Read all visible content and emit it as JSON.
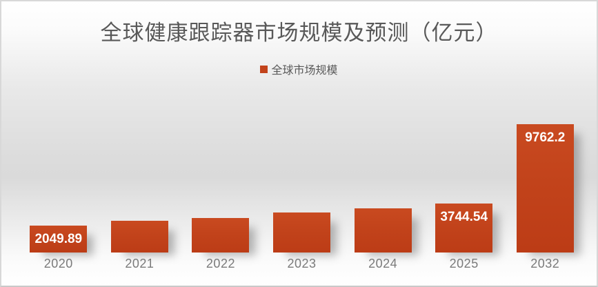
{
  "title": "全球健康跟踪器市场规模及预测（亿元）",
  "legend": {
    "label": "全球市场规模",
    "swatch": "orange-square"
  },
  "colors": {
    "bar": "#c2431b",
    "bar_gradient_top": "#c94a20",
    "bar_gradient_bottom": "#bc3c16",
    "title_text": "#595959",
    "axis_text": "#7a7a7a",
    "data_label_text": "#ffffff",
    "frame_border": "#d8d8d8",
    "background_mid": "#dadada"
  },
  "chart_data": {
    "type": "bar",
    "title": "全球健康跟踪器市场规模及预测（亿元）",
    "xlabel": "",
    "ylabel": "",
    "unit": "亿元",
    "categories": [
      "2020",
      "2021",
      "2022",
      "2023",
      "2024",
      "2025",
      "2032"
    ],
    "series": [
      {
        "name": "全球市场规模",
        "values": [
          2049.89,
          2400,
          2650,
          3070,
          3340,
          3744.54,
          9762.2
        ]
      }
    ],
    "values_estimated": [
      false,
      true,
      true,
      true,
      true,
      false,
      false
    ],
    "data_labels": [
      "2049.89",
      null,
      null,
      null,
      null,
      "3744.54",
      "9762.2"
    ],
    "ylim": [
      0,
      10000
    ],
    "grid": false,
    "axis_lines": false,
    "legend_position": "top-center",
    "data_label_position": "inside-end"
  }
}
